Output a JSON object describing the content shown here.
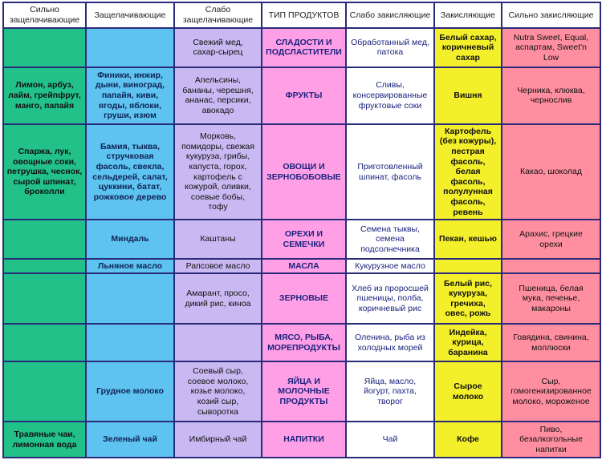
{
  "headers": [
    "Сильно\nзащелачивающие",
    "Защелачивающие",
    "Слабо\nзащелачивающие",
    "ТИП\nПРОДУКТОВ",
    "Слабо\nзакисляющие",
    "Закисляющие",
    "Сильно\nзакисляющие"
  ],
  "rows": [
    [
      "",
      "",
      "Свежий мед,\nсахар-сырец",
      "СЛАДОСТИ И\nПОДСЛАСТИТЕЛИ",
      "Обработанный мед,\nпатока",
      "Белый сахар,\nкоричневый\nсахар",
      "Nutra Sweet, Equal,\nаспартам, Sweet'n\nLow"
    ],
    [
      "Лимон, арбуз,\nлайм, грейпфрут,\nманго, папайя",
      "Финики, инжир,\nдыни, виноград,\nпапайя, киви,\nягоды, яблоки,\nгруши, изюм",
      "Апельсины,\nбананы, черешня,\nананас, персики,\nавокадо",
      "ФРУКТЫ",
      "Сливы,\nконсервированные\nфруктовые соки",
      "Вишня",
      "Черника, клюква,\nчернослив"
    ],
    [
      "Спаржа, лук,\nовощные соки,\nпетрушка, чеснок,\nсырой шпинат,\nброколли",
      "Бамия, тыква,\nстручковая\nфасоль, свекла,\nсельдерей, салат,\nцуккини, батат,\nрожковое дерево",
      "Морковь,\nпомидоры, свежая\nкукуруза, грибы,\nкапуста, горох,\nкартофель с\nкожурой, оливки,\nсоевые бобы,\nтофу",
      "ОВОЩИ И\nЗЕРНОБОБОВЫЕ",
      "Приготовленный\nшпинат, фасоль",
      "Картофель\n(без кожуры),\nпестрая\nфасоль, белая\nфасоль,\nполулунная\nфасоль,\nревень",
      "Какао, шоколад"
    ],
    [
      "",
      "Миндаль",
      "Каштаны",
      "ОРЕХИ И\nСЕМЕЧКИ",
      "Семена тыквы,\nсемена\nподсолнечника",
      "Пекан, кешью",
      "Арахис, грецкие\nорехи"
    ],
    [
      "",
      "Льняное масло",
      "Рапсовое масло",
      "МАСЛА",
      "Кукурузное масло",
      "",
      ""
    ],
    [
      "",
      "",
      "Амарант, просо,\nдикий рис, киноа",
      "ЗЕРНОВЫЕ",
      "Хлеб из проросшей\nпшеницы, полба,\nкоричневый рис",
      "Белый рис,\nкукуруза,\nгречиха,\nовес, рожь",
      "Пшеница, белая\nмука, печенье,\nмакароны"
    ],
    [
      "",
      "",
      "",
      "МЯСО, РЫБА,\nМОРЕПРОДУКТЫ",
      "Оленина, рыба из\nхолодных морей",
      "Индейка,\nкурица,\nбаранина",
      "Говядина, свинина,\nмоллюски"
    ],
    [
      "",
      "Грудное молоко",
      "Соевый сыр,\nсоевое молоко,\nкозье молоко,\nкозий сыр,\nсыворотка",
      "ЯЙЦА И\nМОЛОЧНЫЕ\nПРОДУКТЫ",
      "Яйца, масло,\nйогурт, пахта,\nтворог",
      "Сырое молоко",
      "Сыр,\nгомогенизированное\nмолоко, мороженое"
    ],
    [
      "Травяные чаи,\nлимонная вода",
      "Зеленый чай",
      "Имбирный чай",
      "НАПИТКИ",
      "Чай",
      "Кофе",
      "Пиво,\nбезалкогольные\nнапитки"
    ]
  ],
  "colors": {
    "border": "#2a2a7a",
    "strongly_alkalizing": "#22c18a",
    "alkalizing": "#5ec3f0",
    "weakly_alkalizing": "#c9b9f2",
    "product_type": "#ff9fe6",
    "weakly_acidifying": "#ffffff",
    "acidifying": "#f3ef2a",
    "strongly_acidifying": "#ff8fa0"
  }
}
